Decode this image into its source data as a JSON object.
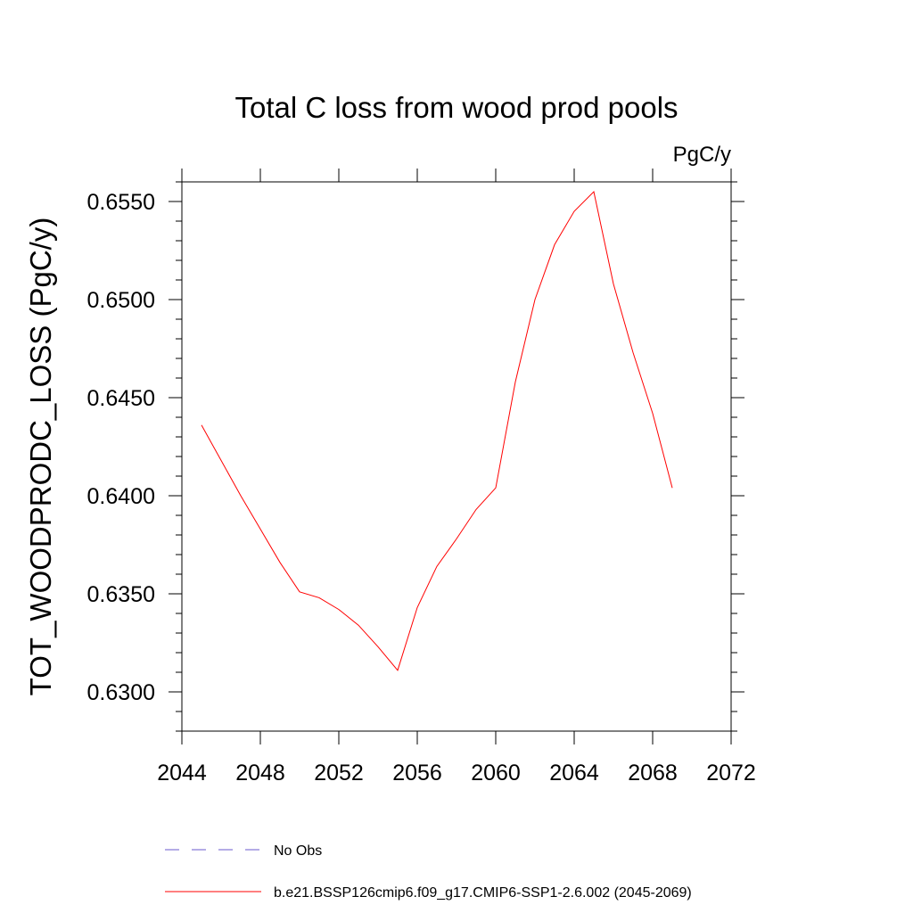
{
  "chart_data": {
    "type": "line",
    "title": "Total C loss from wood prod pools",
    "units_label": "PgC/y",
    "xlabel": "",
    "ylabel": "TOT_WOODPRODC_LOSS  (PgC/y)",
    "xlim": [
      2044,
      2072
    ],
    "ylim": [
      0.628,
      0.656
    ],
    "x_ticks": [
      2044,
      2048,
      2052,
      2056,
      2060,
      2064,
      2068,
      2072
    ],
    "y_ticks": [
      0.63,
      0.635,
      0.64,
      0.645,
      0.65,
      0.655
    ],
    "x_tick_labels": [
      "2044",
      "2048",
      "2052",
      "2056",
      "2060",
      "2064",
      "2068",
      "2072"
    ],
    "y_tick_labels": [
      "0.6300",
      "0.6350",
      "0.6400",
      "0.6450",
      "0.6500",
      "0.6550"
    ],
    "grid": false,
    "legend_position": "bottom",
    "series": [
      {
        "name": "b.e21.BSSP126cmip6.f09_g17.CMIP6-SSP1-2.6.002 (2045-2069)",
        "color": "#ff0000",
        "style": "solid",
        "x": [
          2045,
          2046,
          2047,
          2048,
          2049,
          2050,
          2051,
          2052,
          2053,
          2054,
          2055,
          2056,
          2057,
          2058,
          2059,
          2060,
          2061,
          2062,
          2063,
          2064,
          2065,
          2066,
          2067,
          2068,
          2069
        ],
        "y": [
          0.6436,
          0.6418,
          0.64,
          0.6383,
          0.6366,
          0.6351,
          0.6348,
          0.6342,
          0.6334,
          0.6323,
          0.6311,
          0.6343,
          0.6364,
          0.6378,
          0.6393,
          0.6404,
          0.6458,
          0.65,
          0.6528,
          0.6545,
          0.6555,
          0.6508,
          0.6473,
          0.6442,
          0.6404
        ]
      }
    ],
    "legend": [
      {
        "label": "No Obs",
        "color": "#6a5acd",
        "style": "dashed"
      },
      {
        "label": "b.e21.BSSP126cmip6.f09_g17.CMIP6-SSP1-2.6.002 (2045-2069)",
        "color": "#ff0000",
        "style": "solid"
      }
    ]
  }
}
